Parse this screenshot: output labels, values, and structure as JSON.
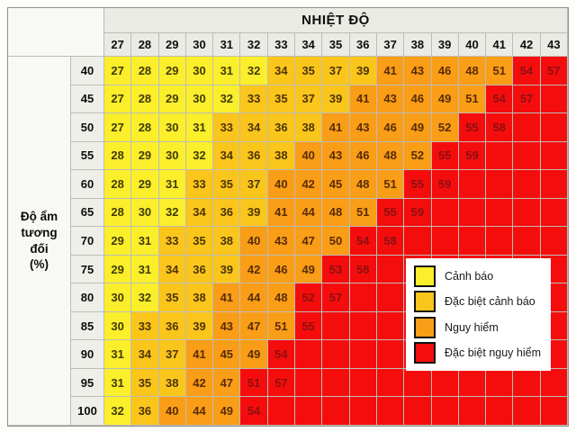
{
  "title": "NHIỆT ĐỘ",
  "y_axis": {
    "label_lines": [
      "Độ ẩm",
      "tương",
      "đối",
      "(%)"
    ]
  },
  "chart_data": {
    "type": "heatmap",
    "title": "NHIỆT ĐỘ",
    "xlabel": "NHIỆT ĐỘ",
    "ylabel": "Độ ẩm tương đối (%)",
    "columns": [
      27,
      28,
      29,
      30,
      31,
      32,
      33,
      34,
      35,
      36,
      37,
      38,
      39,
      40,
      41,
      42,
      43
    ],
    "rows": [
      40,
      45,
      50,
      55,
      60,
      65,
      70,
      75,
      80,
      85,
      90,
      95,
      100
    ],
    "values": [
      [
        27,
        28,
        29,
        30,
        31,
        32,
        34,
        35,
        37,
        39,
        41,
        43,
        46,
        48,
        51,
        54,
        57
      ],
      [
        27,
        28,
        29,
        30,
        32,
        33,
        35,
        37,
        39,
        41,
        43,
        46,
        49,
        51,
        54,
        57,
        null
      ],
      [
        27,
        28,
        30,
        31,
        33,
        34,
        36,
        38,
        41,
        43,
        46,
        49,
        52,
        55,
        58,
        null,
        null
      ],
      [
        28,
        29,
        30,
        32,
        34,
        36,
        38,
        40,
        43,
        46,
        48,
        52,
        55,
        59,
        null,
        null,
        null
      ],
      [
        28,
        29,
        31,
        33,
        35,
        37,
        40,
        42,
        45,
        48,
        51,
        55,
        59,
        null,
        null,
        null,
        null
      ],
      [
        28,
        30,
        32,
        34,
        36,
        39,
        41,
        44,
        48,
        51,
        55,
        59,
        null,
        null,
        null,
        null,
        null
      ],
      [
        29,
        31,
        33,
        35,
        38,
        40,
        43,
        47,
        50,
        54,
        58,
        null,
        null,
        null,
        null,
        null,
        null
      ],
      [
        29,
        31,
        34,
        36,
        39,
        42,
        46,
        49,
        53,
        58,
        null,
        null,
        null,
        null,
        null,
        null,
        null
      ],
      [
        30,
        32,
        35,
        38,
        41,
        44,
        48,
        52,
        57,
        null,
        null,
        null,
        null,
        null,
        null,
        null,
        null
      ],
      [
        30,
        33,
        36,
        39,
        43,
        47,
        51,
        55,
        null,
        null,
        null,
        null,
        null,
        null,
        null,
        null,
        null
      ],
      [
        31,
        34,
        37,
        41,
        45,
        49,
        54,
        null,
        null,
        null,
        null,
        null,
        null,
        null,
        null,
        null,
        null
      ],
      [
        31,
        35,
        38,
        42,
        47,
        51,
        57,
        null,
        null,
        null,
        null,
        null,
        null,
        null,
        null,
        null,
        null
      ],
      [
        32,
        36,
        40,
        44,
        49,
        54,
        null,
        null,
        null,
        null,
        null,
        null,
        null,
        null,
        null,
        null,
        null
      ]
    ],
    "tiers": [
      "yyyyyyggggooooorr",
      "yyyyyggggooooorrr",
      "yyyyggggooooorrrr",
      "yyyygggooooorrrrr",
      "yyygggooooorrrrrr",
      "yyygggoooorrrrrrr",
      "yygggoooorrrrrrrr",
      "yygggooorrrrrrrrr",
      "yyggooorrrrrrrrrr",
      "ygggooorrrrrrrrrr",
      "yggooorrrrrrrrrrr",
      "yggoorrrrrrrrrrrr",
      "ygooorrrrrrrrrrrr"
    ],
    "tier_labels": {
      "y": "Cảnh báo",
      "g": "Đặc biệt cảnh báo",
      "o": "Nguy hiểm",
      "r": "Đặc biệt nguy hiểm"
    },
    "legend_position": "overlay-right"
  },
  "legend": {
    "items": [
      {
        "key": "y",
        "label": "Cảnh báo",
        "color": "#FBEE2B"
      },
      {
        "key": "g",
        "label": "Đặc biệt cảnh báo",
        "color": "#FBC61C"
      },
      {
        "key": "o",
        "label": "Nguy hiểm",
        "color": "#FA9D17"
      },
      {
        "key": "r",
        "label": "Đặc biệt nguy hiểm",
        "color": "#F50D0D"
      }
    ]
  },
  "colors": {
    "yellow": "#FBEE2B",
    "gold": "#FBC61C",
    "orange": "#FA9D17",
    "red": "#F50D0D",
    "header_bg": "#EBEBE5",
    "corner_bg": "#F8F8F4",
    "grid_line": "#BDBDB6"
  }
}
